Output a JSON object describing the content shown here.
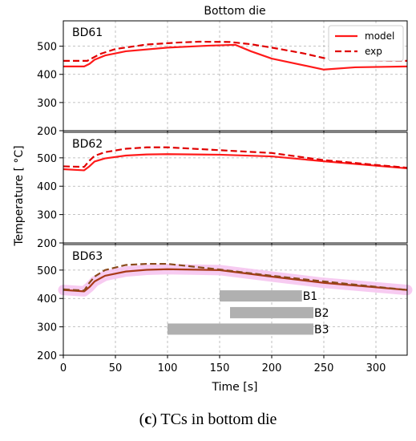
{
  "figure": {
    "title": "Bottom die",
    "caption_prefix": "(",
    "caption_letter": "c",
    "caption_text": ") TCs in bottom die"
  },
  "colors": {
    "model": "#ff1a1a",
    "exp": "#e00000",
    "bd63_model": "#a83a18",
    "bd63_exp": "#8a4a1a",
    "band": "#f6c2ee",
    "process_bar": "#b0b0b0",
    "grid": "#b0b0b0"
  },
  "chart_data": {
    "type": "line",
    "xlabel": "Time [s]",
    "ylabel": "Temperature [ °C]",
    "xlim": [
      0,
      330
    ],
    "xticks": [
      0,
      50,
      100,
      150,
      200,
      250,
      300
    ],
    "ylim": [
      200,
      590
    ],
    "yticks": [
      200,
      300,
      400,
      500
    ],
    "grid": true,
    "legend": {
      "placement": "top-right",
      "entries": [
        "model",
        "exp"
      ]
    },
    "panels": [
      {
        "label": "BD61",
        "series": [
          {
            "name": "model",
            "style": "solid",
            "x": [
              0,
              20,
              25,
              30,
              40,
              60,
              100,
              140,
              165,
              180,
              200,
              250,
              280,
              330
            ],
            "y": [
              428,
              428,
              437,
              452,
              467,
              482,
              495,
              502,
              505,
              482,
              456,
              417,
              425,
              428
            ]
          },
          {
            "name": "exp",
            "style": "dashed",
            "x": [
              0,
              23,
              28,
              35,
              50,
              80,
              110,
              130,
              160,
              180,
              200,
              230,
              250,
              270,
              330
            ],
            "y": [
              448,
              448,
              458,
              472,
              490,
              506,
              513,
              516,
              515,
              507,
              495,
              475,
              458,
              450,
              448
            ]
          }
        ]
      },
      {
        "label": "BD62",
        "series": [
          {
            "name": "model",
            "style": "solid",
            "x": [
              0,
              20,
              25,
              30,
              40,
              60,
              80,
              100,
              150,
              200,
              250,
              330
            ],
            "y": [
              460,
              456,
              470,
              487,
              498,
              508,
              512,
              513,
              511,
              505,
              488,
              463
            ]
          },
          {
            "name": "exp",
            "style": "dashed",
            "x": [
              0,
              20,
              25,
              30,
              40,
              60,
              80,
              100,
              150,
              200,
              250,
              330
            ],
            "y": [
              470,
              468,
              490,
              507,
              520,
              532,
              537,
              537,
              527,
              517,
              492,
              465
            ]
          }
        ]
      },
      {
        "label": "BD63",
        "series": [
          {
            "name": "model",
            "style": "solid",
            "x": [
              0,
              20,
              25,
              30,
              40,
              60,
              80,
              100,
              150,
              200,
              250,
              330
            ],
            "y": [
              430,
              425,
              440,
              460,
              480,
              495,
              501,
              503,
              500,
              477,
              455,
              430
            ]
          },
          {
            "name": "exp",
            "style": "dashed",
            "x": [
              0,
              20,
              25,
              30,
              40,
              60,
              80,
              100,
              150,
              200,
              250,
              330
            ],
            "y": [
              432,
              428,
              455,
              477,
              500,
              518,
              522,
              522,
              502,
              480,
              460,
              430
            ]
          }
        ],
        "process_bars": [
          {
            "label": "B1",
            "x_start": 150,
            "x_end": 229,
            "y": 409
          },
          {
            "label": "B2",
            "x_start": 160,
            "x_end": 240,
            "y": 350
          },
          {
            "label": "B3",
            "x_start": 100,
            "x_end": 240,
            "y": 292
          }
        ]
      }
    ]
  }
}
